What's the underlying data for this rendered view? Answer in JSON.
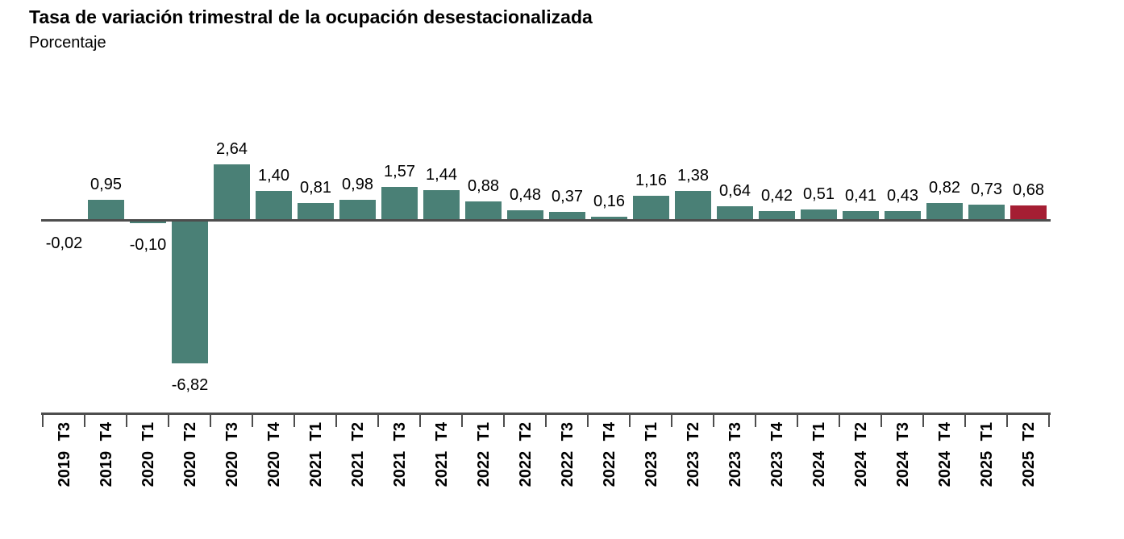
{
  "header": {
    "title": "Tasa de variación trimestral de la ocupación desestacionalizada",
    "subtitle": "Porcentaje"
  },
  "colors": {
    "bar": "#4A8076",
    "highlight_bar": "#A51E33",
    "axis": "#4D4D4D",
    "text": "#000000"
  },
  "chart_data": {
    "type": "bar",
    "title": "Tasa de variación trimestral de la ocupación desestacionalizada",
    "ylabel": "Porcentaje",
    "xlabel": "",
    "grid": false,
    "legend": false,
    "ylim": [
      -7,
      3
    ],
    "categories": [
      "2019 T3",
      "2019 T4",
      "2020 T1",
      "2020 T2",
      "2020 T3",
      "2020 T4",
      "2021 T1",
      "2021 T2",
      "2021 T3",
      "2021 T4",
      "2022 T1",
      "2022 T2",
      "2022 T3",
      "2022 T4",
      "2023 T1",
      "2023 T2",
      "2023 T3",
      "2023 T4",
      "2024 T1",
      "2024 T2",
      "2024 T3",
      "2024 T4",
      "2025 T1",
      "2025 T2"
    ],
    "values": [
      -0.02,
      0.95,
      -0.1,
      -6.82,
      2.64,
      1.4,
      0.81,
      0.98,
      1.57,
      1.44,
      0.88,
      0.48,
      0.37,
      0.16,
      1.16,
      1.38,
      0.64,
      0.42,
      0.51,
      0.41,
      0.43,
      0.82,
      0.73,
      0.68
    ],
    "value_labels": [
      "-0,02",
      "0,95",
      "-0,10",
      "-6,82",
      "2,64",
      "1,40",
      "0,81",
      "0,98",
      "1,57",
      "1,44",
      "0,88",
      "0,48",
      "0,37",
      "0,16",
      "1,16",
      "1,38",
      "0,64",
      "0,42",
      "0,51",
      "0,41",
      "0,43",
      "0,82",
      "0,73",
      "0,68"
    ],
    "highlight_index": 23,
    "highlight_category": "2025 T2"
  }
}
